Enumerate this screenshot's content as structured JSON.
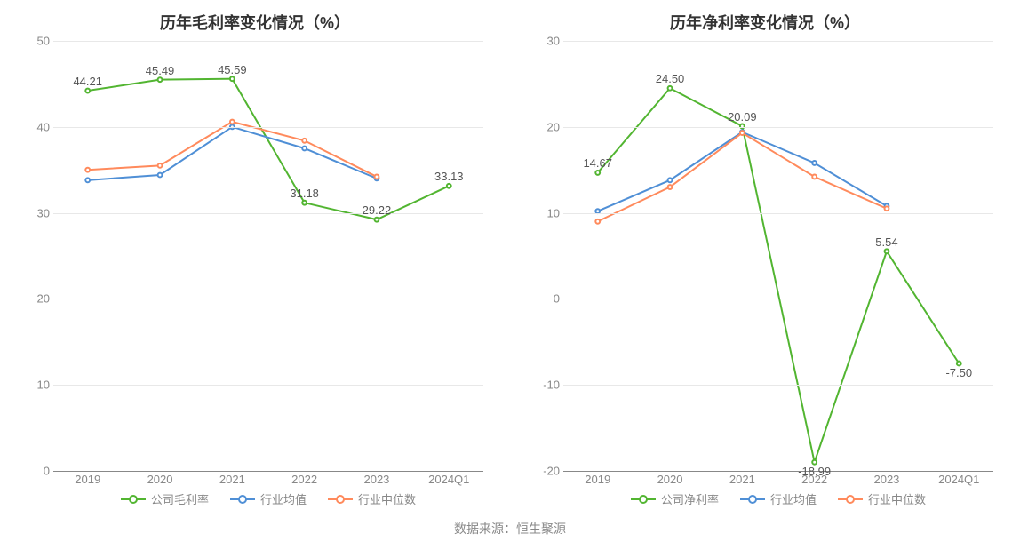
{
  "background_color": "#ffffff",
  "grid_color": "#e8e8e8",
  "axis_text_color": "#888888",
  "label_text_color": "#555555",
  "title_color": "#333333",
  "title_fontsize": 18,
  "axis_fontsize": 13,
  "label_fontsize": 13,
  "legend_fontsize": 13,
  "line_width": 2,
  "marker_radius": 5,
  "marker_fill": "#ffffff",
  "source_label": "数据来源：恒生聚源",
  "categories": [
    "2019",
    "2020",
    "2021",
    "2022",
    "2023",
    "2024Q1"
  ],
  "left_chart": {
    "type": "line",
    "title": "历年毛利率变化情况（%）",
    "ylim": [
      0,
      50
    ],
    "ytick_step": 10,
    "yticks": [
      0,
      10,
      20,
      30,
      40,
      50
    ],
    "series": [
      {
        "key": "company_gross",
        "name": "公司毛利率",
        "color": "#52b531",
        "values": [
          44.21,
          45.49,
          45.59,
          31.18,
          29.22,
          33.13
        ],
        "show_labels": true
      },
      {
        "key": "industry_avg",
        "name": "行业均值",
        "color": "#4f8fd6",
        "values": [
          33.8,
          34.4,
          40.0,
          37.5,
          34.0,
          null
        ],
        "show_labels": false
      },
      {
        "key": "industry_median",
        "name": "行业中位数",
        "color": "#ff8a5c",
        "values": [
          35.0,
          35.5,
          40.6,
          38.4,
          34.2,
          null
        ],
        "show_labels": false
      }
    ]
  },
  "right_chart": {
    "type": "line",
    "title": "历年净利率变化情况（%）",
    "ylim": [
      -20,
      30
    ],
    "ytick_step": 10,
    "yticks": [
      -20,
      -10,
      0,
      10,
      20,
      30
    ],
    "series": [
      {
        "key": "company_net",
        "name": "公司净利率",
        "color": "#52b531",
        "values": [
          14.67,
          24.5,
          20.09,
          -18.99,
          5.54,
          -7.5
        ],
        "show_labels": true
      },
      {
        "key": "industry_avg",
        "name": "行业均值",
        "color": "#4f8fd6",
        "values": [
          10.2,
          13.8,
          19.4,
          15.8,
          10.8,
          null
        ],
        "show_labels": false
      },
      {
        "key": "industry_median",
        "name": "行业中位数",
        "color": "#ff8a5c",
        "values": [
          9.0,
          13.0,
          19.3,
          14.2,
          10.5,
          null
        ],
        "show_labels": false
      }
    ]
  }
}
